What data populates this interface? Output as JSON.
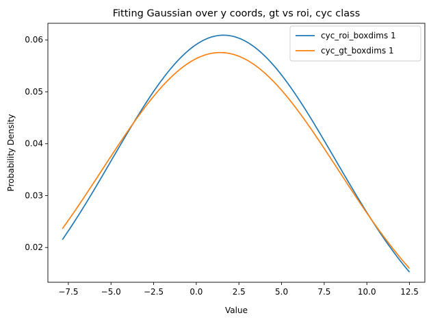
{
  "chart_data": {
    "type": "line",
    "title": "Fitting Gaussian over y coords, gt vs roi, cyc class",
    "xlabel": "Value",
    "ylabel": "Probability Density",
    "xlim": [
      -8.7,
      13.4
    ],
    "ylim": [
      0.0133,
      0.0632
    ],
    "x_domain": [
      -7.85,
      12.5
    ],
    "xticks": [
      -7.5,
      -5.0,
      -2.5,
      0.0,
      2.5,
      5.0,
      7.5,
      10.0,
      12.5
    ],
    "xtick_labels": [
      "−7.5",
      "−5.0",
      "−2.5",
      "0.0",
      "2.5",
      "5.0",
      "7.5",
      "10.0",
      "12.5"
    ],
    "yticks": [
      0.02,
      0.03,
      0.04,
      0.05,
      0.06
    ],
    "ytick_labels": [
      "0.02",
      "0.03",
      "0.04",
      "0.05",
      "0.06"
    ],
    "grid": false,
    "legend_position": "top-right",
    "series": [
      {
        "name": "cyc_roi_boxdims 1",
        "color": "#1f77b4",
        "mean": 1.6,
        "std": 6.55
      },
      {
        "name": "cyc_gt_boxdims 1",
        "color": "#ff7f0e",
        "mean": 1.4,
        "std": 6.93
      }
    ]
  }
}
